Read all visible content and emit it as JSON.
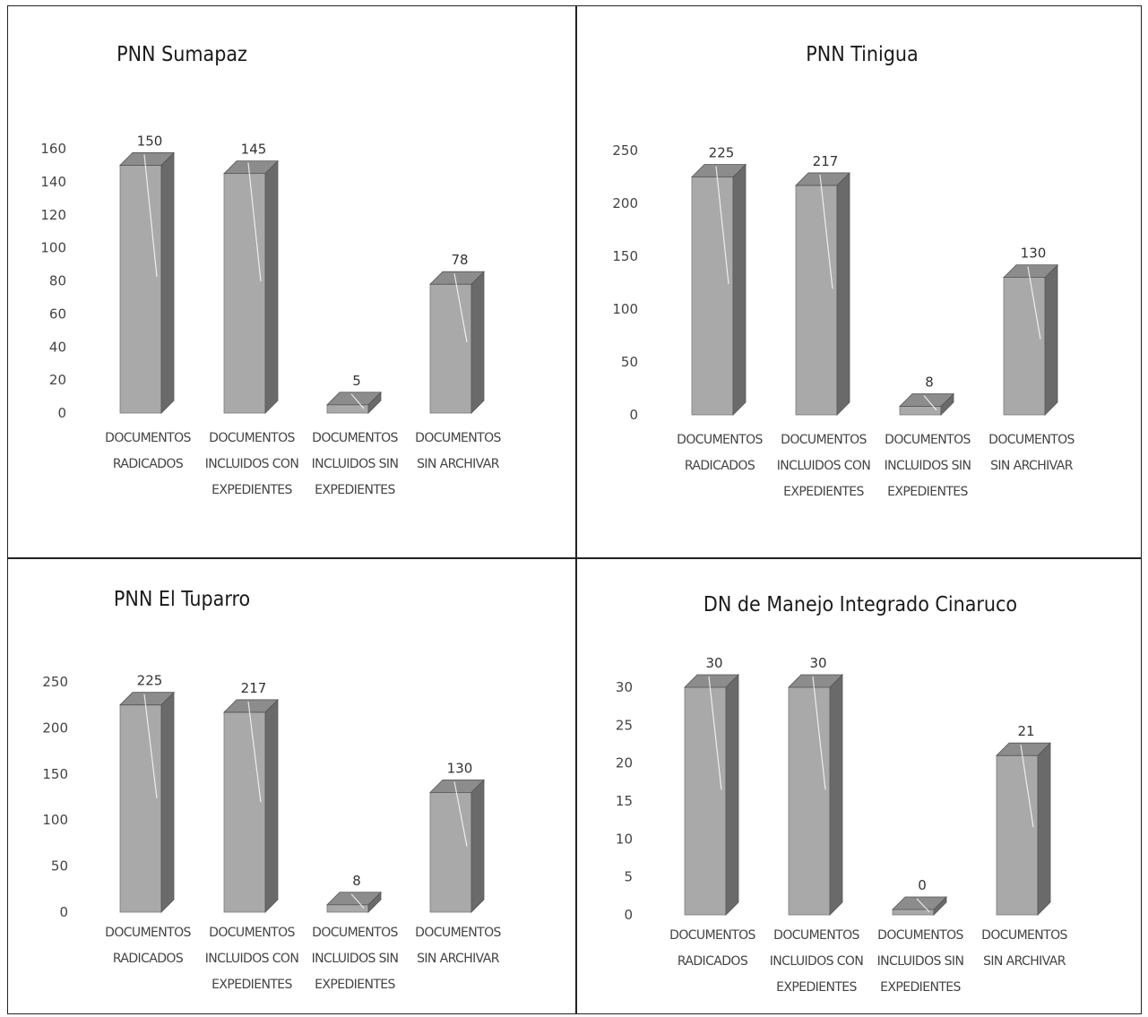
{
  "chart_data": [
    {
      "type": "bar",
      "title": "PNN  Sumapaz",
      "categories": [
        [
          "DOCUMENTOS",
          "RADICADOS"
        ],
        [
          "DOCUMENTOS",
          "INCLUIDOS CON",
          "EXPEDIENTES"
        ],
        [
          "DOCUMENTOS",
          "INCLUIDOS SIN",
          "EXPEDIENTES"
        ],
        [
          "DOCUMENTOS",
          "SIN ARCHIVAR"
        ]
      ],
      "values": [
        150,
        145,
        5,
        78
      ],
      "yticks": [
        "0",
        "20",
        "40",
        "60",
        "80",
        "100",
        "120",
        "140",
        "160"
      ],
      "ylim": [
        0,
        160
      ],
      "colors": {
        "front": "#a9a9a9",
        "side": "#6a6a6a",
        "top": "#8c8c8c"
      }
    },
    {
      "type": "bar",
      "title": "PNN Tinigua",
      "categories": [
        [
          "DOCUMENTOS",
          "RADICADOS"
        ],
        [
          "DOCUMENTOS",
          "INCLUIDOS CON",
          "EXPEDIENTES"
        ],
        [
          "DOCUMENTOS",
          "INCLUIDOS SIN",
          "EXPEDIENTES"
        ],
        [
          "DOCUMENTOS",
          "SIN ARCHIVAR"
        ]
      ],
      "values": [
        225,
        217,
        8,
        130
      ],
      "yticks": [
        "0",
        "50",
        "100",
        "150",
        "200",
        "250"
      ],
      "ylim": [
        0,
        250
      ],
      "colors": {
        "front": "#a9a9a9",
        "side": "#6a6a6a",
        "top": "#8c8c8c"
      }
    },
    {
      "type": "bar",
      "title": "PNN El Tuparro",
      "categories": [
        [
          "DOCUMENTOS",
          "RADICADOS"
        ],
        [
          "DOCUMENTOS",
          "INCLUIDOS CON",
          "EXPEDIENTES"
        ],
        [
          "DOCUMENTOS",
          "INCLUIDOS SIN",
          "EXPEDIENTES"
        ],
        [
          "DOCUMENTOS",
          "SIN ARCHIVAR"
        ]
      ],
      "values": [
        225,
        217,
        8,
        130
      ],
      "yticks": [
        "0",
        "50",
        "100",
        "150",
        "200",
        "250"
      ],
      "ylim": [
        0,
        250
      ],
      "colors": {
        "front": "#a9a9a9",
        "side": "#6a6a6a",
        "top": "#8c8c8c"
      }
    },
    {
      "type": "bar",
      "title": "DN de Manejo Integrado Cinaruco",
      "categories": [
        [
          "DOCUMENTOS",
          "RADICADOS"
        ],
        [
          "DOCUMENTOS",
          "INCLUIDOS CON",
          "EXPEDIENTES"
        ],
        [
          "DOCUMENTOS",
          "INCLUIDOS SIN",
          "EXPEDIENTES"
        ],
        [
          "DOCUMENTOS",
          "SIN ARCHIVAR"
        ]
      ],
      "values": [
        30,
        30,
        0,
        21
      ],
      "yticks": [
        "0",
        "5",
        "10",
        "15",
        "20",
        "25",
        "30"
      ],
      "ylim": [
        0,
        30
      ],
      "colors": {
        "front": "#a9a9a9",
        "side": "#6a6a6a",
        "top": "#8c8c8c"
      }
    }
  ]
}
